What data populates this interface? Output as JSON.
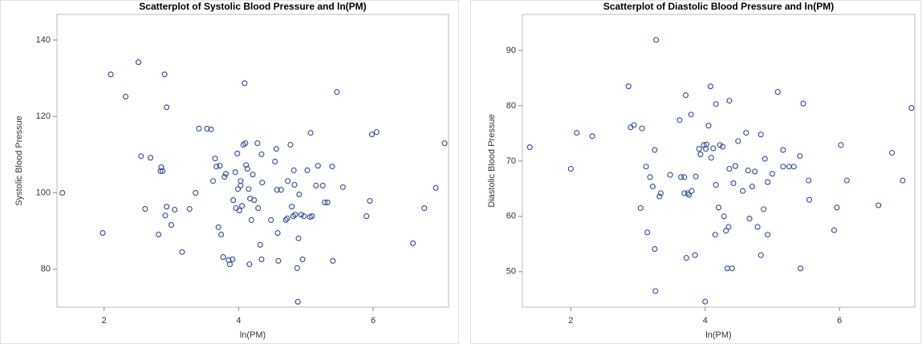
{
  "chart_data": [
    {
      "type": "scatter",
      "title": "Scatterplot of Systolic Blood Pressure and ln(PM)",
      "x_label": "ln(PM)",
      "y_label": "Systolic Blood Pressue",
      "color": "#2b4c9b",
      "xlim": [
        1.3,
        7.12
      ],
      "ylim": [
        70.1,
        146.7
      ],
      "xticks": [
        2,
        4,
        6
      ],
      "yticks": [
        80,
        100,
        120,
        140
      ],
      "x": [
        1.38,
        1.98,
        2.1,
        2.32,
        2.51,
        2.55,
        2.61,
        2.69,
        2.81,
        2.84,
        2.85,
        2.87,
        2.9,
        2.91,
        2.93,
        2.93,
        3.0,
        3.05,
        3.16,
        3.27,
        3.36,
        3.41,
        3.53,
        3.59,
        3.62,
        3.65,
        3.67,
        3.7,
        3.72,
        3.74,
        3.77,
        3.79,
        3.81,
        3.85,
        3.87,
        3.91,
        3.92,
        3.95,
        3.96,
        3.98,
        3.99,
        4.01,
        4.03,
        4.03,
        4.05,
        4.07,
        4.09,
        4.1,
        4.11,
        4.13,
        4.15,
        4.16,
        4.17,
        4.19,
        4.21,
        4.23,
        4.28,
        4.29,
        4.32,
        4.34,
        4.34,
        4.35,
        4.48,
        4.54,
        4.56,
        4.57,
        4.58,
        4.59,
        4.63,
        4.7,
        4.72,
        4.73,
        4.77,
        4.79,
        4.81,
        4.82,
        4.83,
        4.84,
        4.87,
        4.88,
        4.89,
        4.9,
        4.93,
        4.95,
        4.97,
        5.02,
        5.06,
        5.07,
        5.09,
        5.15,
        5.18,
        5.25,
        5.28,
        5.32,
        5.39,
        5.4,
        5.46,
        5.55,
        5.9,
        5.95,
        5.98,
        6.05,
        6.59,
        6.76,
        6.93,
        7.06
      ],
      "values": [
        100,
        89.5,
        131.0,
        125.2,
        134.2,
        109.6,
        95.8,
        109.2,
        89.1,
        105.7,
        106.7,
        105.7,
        131.0,
        94.1,
        122.4,
        96.4,
        91.6,
        95.6,
        84.5,
        95.8,
        100,
        116.8,
        116.8,
        116.6,
        103.1,
        109.0,
        106.9,
        91.0,
        107.1,
        89.1,
        83.2,
        104.2,
        105.0,
        82.4,
        81.3,
        82.6,
        98.1,
        105.4,
        96.0,
        110.3,
        101.0,
        95.4,
        101.9,
        103.1,
        96.6,
        112.6,
        128.7,
        113.0,
        107.3,
        106.3,
        101.0,
        81.3,
        98.5,
        92.9,
        104.8,
        98.1,
        113.0,
        96.0,
        86.4,
        82.6,
        110.1,
        102.7,
        92.9,
        108.2,
        111.5,
        100.8,
        89.5,
        82.2,
        100.8,
        92.9,
        93.3,
        103.1,
        112.6,
        96.4,
        93.9,
        105.9,
        102.1,
        94.3,
        80.3,
        71.5,
        88.1,
        99.6,
        94.3,
        82.6,
        93.9,
        105.9,
        93.7,
        115.7,
        93.9,
        101.9,
        107.1,
        101.9,
        97.5,
        97.5,
        106.9,
        82.2,
        126.4,
        101.5,
        93.9,
        97.9,
        115.3,
        115.9,
        86.8,
        96.0,
        101.3,
        113.0
      ]
    },
    {
      "type": "scatter",
      "title": "Scatterplot of Diastolic Blood Pressure and ln(PM)",
      "x_label": "ln(PM)",
      "y_label": "Diastolic Blood Pressue",
      "color": "#2b4c9b",
      "xlim": [
        1.28,
        7.12
      ],
      "ylim": [
        43.6,
        96.5
      ],
      "xticks": [
        2,
        4,
        6
      ],
      "yticks": [
        50,
        60,
        70,
        80,
        90
      ],
      "x": [
        1.39,
        2.0,
        2.09,
        2.32,
        2.86,
        2.89,
        2.94,
        3.04,
        3.06,
        3.12,
        3.14,
        3.18,
        3.22,
        3.25,
        3.26,
        3.27,
        3.25,
        3.32,
        3.34,
        3.48,
        3.62,
        3.64,
        3.69,
        3.69,
        3.71,
        3.72,
        3.74,
        3.76,
        3.79,
        3.8,
        3.85,
        3.86,
        3.91,
        3.93,
        3.98,
        4.01,
        4.02,
        4.05,
        4.08,
        4.09,
        4.12,
        4.15,
        4.16,
        4.16,
        4.2,
        4.22,
        4.26,
        4.28,
        4.31,
        4.33,
        4.35,
        4.36,
        4.36,
        4.4,
        4.42,
        4.45,
        4.49,
        4.56,
        4.61,
        4.64,
        4.66,
        4.7,
        4.74,
        4.78,
        4.83,
        4.83,
        4.87,
        4.89,
        4.93,
        4.93,
        5.0,
        5.08,
        4.0,
        5.16,
        5.16,
        5.25,
        5.32,
        5.41,
        5.42,
        5.46,
        5.54,
        5.55,
        5.92,
        5.96,
        6.02,
        6.11,
        6.58,
        6.78,
        6.94,
        7.07
      ],
      "values": [
        72.5,
        68.6,
        75.1,
        74.5,
        83.5,
        76.1,
        76.5,
        61.5,
        75.9,
        69.0,
        57.1,
        67.1,
        65.4,
        72.0,
        46.5,
        91.9,
        54.1,
        63.6,
        64.2,
        67.5,
        77.4,
        67.1,
        67.1,
        64.2,
        81.9,
        52.5,
        64.2,
        63.9,
        78.4,
        64.6,
        53.0,
        67.2,
        72.2,
        71.2,
        72.9,
        72.2,
        73.0,
        76.4,
        83.5,
        70.6,
        72.3,
        56.7,
        65.7,
        80.3,
        61.6,
        72.9,
        72.6,
        60.0,
        57.4,
        50.6,
        58.1,
        80.9,
        68.6,
        50.6,
        66.0,
        69.1,
        73.6,
        64.6,
        75.1,
        68.3,
        59.6,
        65.4,
        68.1,
        58.1,
        74.8,
        53.0,
        61.3,
        70.4,
        66.2,
        56.7,
        67.7,
        82.5,
        44.6,
        72.0,
        69.0,
        69.0,
        69.0,
        70.9,
        50.6,
        80.4,
        66.5,
        63.0,
        57.5,
        61.6,
        72.9,
        66.5,
        62.0,
        71.5,
        66.5,
        79.6
      ]
    }
  ]
}
